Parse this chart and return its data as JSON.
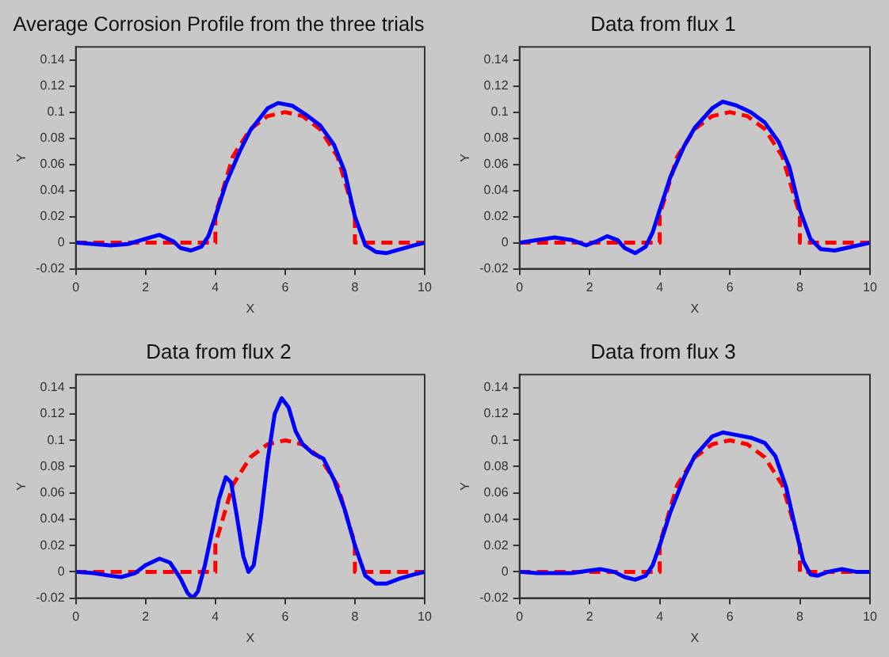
{
  "chart_data": [
    {
      "type": "line",
      "title": "Average Corrosion Profile from the three trials",
      "xlabel": "X",
      "ylabel": "Y",
      "xlim": [
        0,
        10
      ],
      "ylim": [
        -0.02,
        0.15
      ],
      "xticks": [
        0,
        2,
        4,
        6,
        8,
        10
      ],
      "yticks": [
        -0.02,
        0,
        0.02,
        0.04,
        0.06,
        0.08,
        0.1,
        0.12,
        0.14
      ],
      "grid": false,
      "legend": false,
      "series": [
        {
          "color": "#0000ff",
          "line_style": "solid",
          "x": [
            0,
            0.5,
            1,
            1.5,
            2,
            2.4,
            2.8,
            3,
            3.3,
            3.6,
            3.8,
            4,
            4.3,
            4.7,
            5,
            5.5,
            5.8,
            6.2,
            6.6,
            7,
            7.4,
            7.7,
            8,
            8.3,
            8.6,
            8.9,
            9.3,
            9.7,
            10
          ],
          "values": [
            0,
            -0.001,
            -0.002,
            -0.001,
            0.003,
            0.006,
            0.001,
            -0.004,
            -0.006,
            -0.003,
            0.005,
            0.02,
            0.045,
            0.07,
            0.086,
            0.103,
            0.107,
            0.105,
            0.098,
            0.09,
            0.075,
            0.055,
            0.02,
            -0.002,
            -0.007,
            -0.008,
            -0.005,
            -0.002,
            0
          ]
        },
        {
          "color": "#ff0000",
          "line_style": "dashed",
          "x": [
            0,
            4,
            4,
            4.1,
            4.5,
            5,
            5.5,
            6,
            6.5,
            7,
            7.5,
            7.9,
            8,
            8,
            10
          ],
          "values": [
            0,
            0,
            0.022,
            0.03,
            0.066,
            0.087,
            0.097,
            0.1,
            0.097,
            0.087,
            0.066,
            0.03,
            0.022,
            0,
            0
          ]
        }
      ]
    },
    {
      "type": "line",
      "title": "Data from flux 1",
      "xlabel": "X",
      "ylabel": "Y",
      "xlim": [
        0,
        10
      ],
      "ylim": [
        -0.02,
        0.15
      ],
      "xticks": [
        0,
        2,
        4,
        6,
        8,
        10
      ],
      "yticks": [
        -0.02,
        0,
        0.02,
        0.04,
        0.06,
        0.08,
        0.1,
        0.12,
        0.14
      ],
      "grid": false,
      "legend": false,
      "series": [
        {
          "color": "#0000ff",
          "line_style": "solid",
          "x": [
            0,
            0.5,
            1,
            1.5,
            1.9,
            2.2,
            2.5,
            2.8,
            3,
            3.3,
            3.6,
            3.8,
            4,
            4.3,
            4.7,
            5,
            5.5,
            5.8,
            6.2,
            6.6,
            7,
            7.4,
            7.7,
            8,
            8.3,
            8.6,
            9,
            9.5,
            10
          ],
          "values": [
            0,
            0.002,
            0.004,
            0.002,
            -0.002,
            0.001,
            0.005,
            0.002,
            -0.004,
            -0.008,
            -0.003,
            0.008,
            0.025,
            0.05,
            0.074,
            0.088,
            0.103,
            0.108,
            0.105,
            0.1,
            0.092,
            0.077,
            0.058,
            0.025,
            0.003,
            -0.005,
            -0.006,
            -0.003,
            0
          ]
        },
        {
          "color": "#ff0000",
          "line_style": "dashed",
          "x": [
            0,
            4,
            4,
            4.1,
            4.5,
            5,
            5.5,
            6,
            6.5,
            7,
            7.5,
            7.9,
            8,
            8,
            10
          ],
          "values": [
            0,
            0,
            0.022,
            0.03,
            0.066,
            0.087,
            0.097,
            0.1,
            0.097,
            0.087,
            0.066,
            0.03,
            0.022,
            0,
            0
          ]
        }
      ]
    },
    {
      "type": "line",
      "title": "Data from flux 2",
      "xlabel": "X",
      "ylabel": "Y",
      "xlim": [
        0,
        10
      ],
      "ylim": [
        -0.02,
        0.15
      ],
      "xticks": [
        0,
        2,
        4,
        6,
        8,
        10
      ],
      "yticks": [
        -0.02,
        0,
        0.02,
        0.04,
        0.06,
        0.08,
        0.1,
        0.12,
        0.14
      ],
      "grid": false,
      "legend": false,
      "series": [
        {
          "color": "#0000ff",
          "line_style": "solid",
          "x": [
            0,
            0.5,
            1,
            1.3,
            1.7,
            2,
            2.4,
            2.7,
            3,
            3.2,
            3.35,
            3.5,
            3.7,
            3.9,
            4.1,
            4.3,
            4.45,
            4.6,
            4.8,
            4.95,
            5.1,
            5.3,
            5.5,
            5.7,
            5.9,
            6.1,
            6.3,
            6.5,
            6.8,
            7.1,
            7.4,
            7.7,
            8,
            8.3,
            8.6,
            8.9,
            9.3,
            9.7,
            10
          ],
          "values": [
            0,
            -0.001,
            -0.003,
            -0.004,
            -0.001,
            0.005,
            0.01,
            0.007,
            -0.005,
            -0.016,
            -0.02,
            -0.015,
            0.005,
            0.03,
            0.055,
            0.072,
            0.068,
            0.045,
            0.012,
            0,
            0.005,
            0.04,
            0.085,
            0.12,
            0.132,
            0.125,
            0.107,
            0.097,
            0.09,
            0.086,
            0.07,
            0.048,
            0.02,
            -0.003,
            -0.009,
            -0.009,
            -0.005,
            -0.002,
            0
          ]
        },
        {
          "color": "#ff0000",
          "line_style": "dashed",
          "x": [
            0,
            4,
            4,
            4.1,
            4.5,
            5,
            5.5,
            6,
            6.5,
            7,
            7.5,
            7.9,
            8,
            8,
            10
          ],
          "values": [
            0,
            0,
            0.022,
            0.03,
            0.066,
            0.087,
            0.097,
            0.1,
            0.097,
            0.087,
            0.066,
            0.03,
            0.022,
            0,
            0
          ]
        }
      ]
    },
    {
      "type": "line",
      "title": "Data from flux 3",
      "xlabel": "X",
      "ylabel": "Y",
      "xlim": [
        0,
        10
      ],
      "ylim": [
        -0.02,
        0.15
      ],
      "xticks": [
        0,
        2,
        4,
        6,
        8,
        10
      ],
      "yticks": [
        -0.02,
        0,
        0.02,
        0.04,
        0.06,
        0.08,
        0.1,
        0.12,
        0.14
      ],
      "grid": false,
      "legend": false,
      "series": [
        {
          "color": "#0000ff",
          "line_style": "solid",
          "x": [
            0,
            0.5,
            1,
            1.5,
            2,
            2.3,
            2.7,
            3,
            3.3,
            3.6,
            3.8,
            4,
            4.3,
            4.7,
            5,
            5.5,
            5.8,
            6.2,
            6.6,
            7,
            7.3,
            7.6,
            7.9,
            8.1,
            8.3,
            8.5,
            8.8,
            9.2,
            9.6,
            10
          ],
          "values": [
            0,
            -0.001,
            -0.001,
            -0.001,
            0.001,
            0.002,
            0,
            -0.004,
            -0.006,
            -0.003,
            0.005,
            0.02,
            0.045,
            0.072,
            0.088,
            0.103,
            0.106,
            0.104,
            0.102,
            0.098,
            0.088,
            0.065,
            0.03,
            0.008,
            -0.002,
            -0.003,
            0,
            0.002,
            0,
            0
          ]
        },
        {
          "color": "#ff0000",
          "line_style": "dashed",
          "x": [
            0,
            4,
            4,
            4.1,
            4.5,
            5,
            5.5,
            6,
            6.5,
            7,
            7.5,
            7.9,
            8,
            8,
            10
          ],
          "values": [
            0,
            0,
            0.022,
            0.03,
            0.066,
            0.087,
            0.097,
            0.1,
            0.097,
            0.087,
            0.066,
            0.03,
            0.022,
            0,
            0
          ]
        }
      ]
    }
  ]
}
